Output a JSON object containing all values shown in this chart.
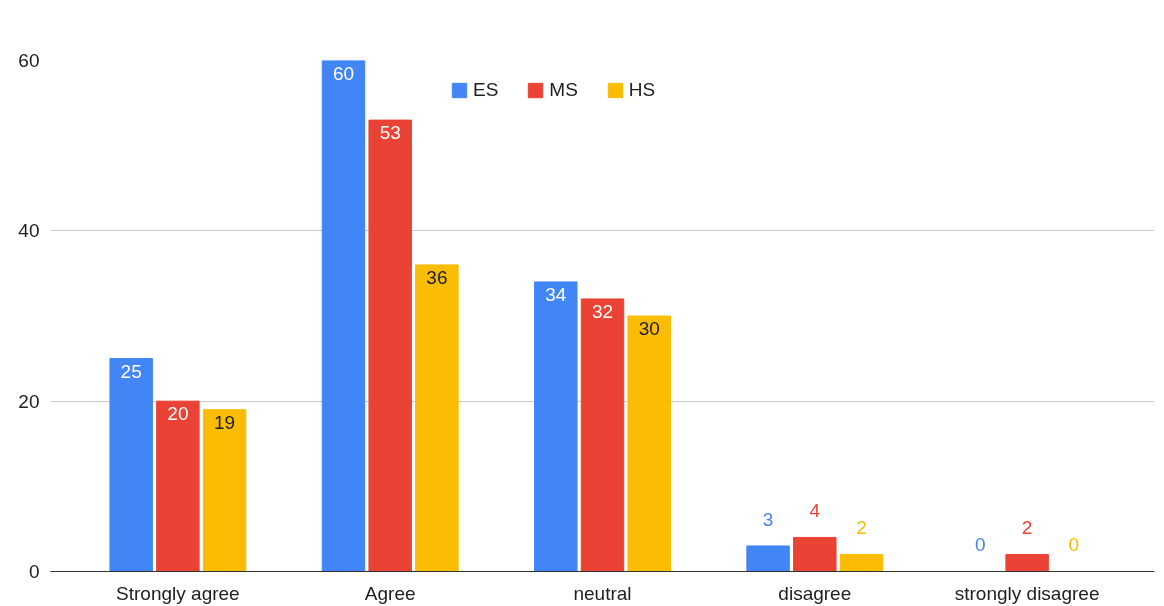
{
  "chart_data": {
    "type": "bar",
    "categories": [
      "Strongly agree",
      "Agree",
      "neutral",
      "disagree",
      "strongly disagree"
    ],
    "series": [
      {
        "name": "ES",
        "color": "#4285f4",
        "values": [
          25,
          60,
          34,
          3,
          0
        ]
      },
      {
        "name": "MS",
        "color": "#ea4335",
        "values": [
          20,
          53,
          32,
          4,
          2
        ]
      },
      {
        "name": "HS",
        "color": "#fbbc04",
        "values": [
          19,
          36,
          30,
          2,
          0
        ]
      }
    ],
    "ylim": [
      0,
      60
    ],
    "yticks": [
      0,
      20,
      40,
      60
    ],
    "grid": "y",
    "legend": "top",
    "data_labels": true
  }
}
